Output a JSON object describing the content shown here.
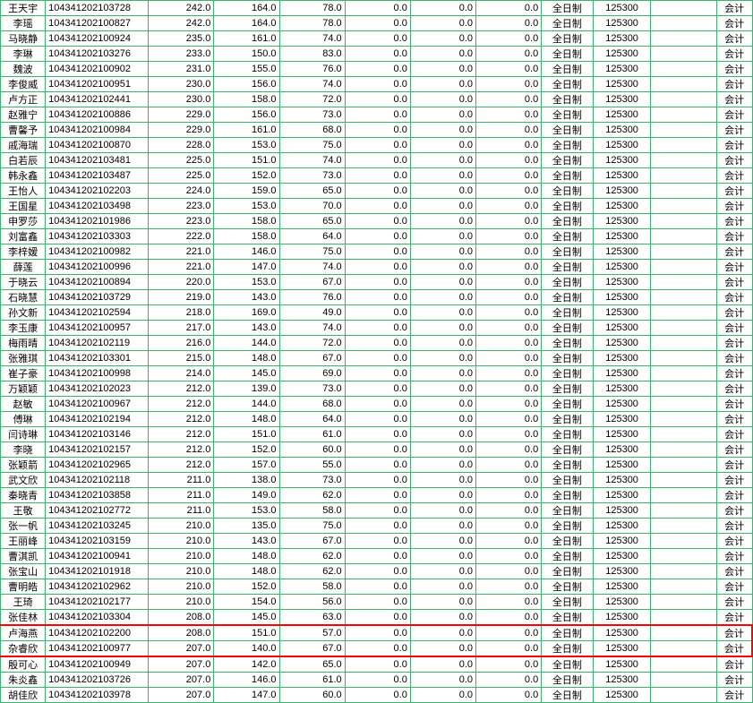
{
  "colors": {
    "grid": "#3cb371",
    "bg": "#ffffff",
    "text": "#000000",
    "highlight": "#ff0000"
  },
  "fontsize": 11,
  "columns": [
    {
      "key": "name",
      "class": "c-name",
      "align": "center"
    },
    {
      "key": "id",
      "class": "c-id",
      "align": "left"
    },
    {
      "key": "v1",
      "class": "c-num",
      "align": "right"
    },
    {
      "key": "v2",
      "class": "c-num",
      "align": "right"
    },
    {
      "key": "v3",
      "class": "c-num",
      "align": "right"
    },
    {
      "key": "v4",
      "class": "c-num",
      "align": "right"
    },
    {
      "key": "v5",
      "class": "c-num",
      "align": "right"
    },
    {
      "key": "v6",
      "class": "c-num",
      "align": "right"
    },
    {
      "key": "mode",
      "class": "c-txt",
      "align": "center"
    },
    {
      "key": "code",
      "class": "c-code",
      "align": "center"
    },
    {
      "key": "gap",
      "class": "c-num",
      "align": "right"
    },
    {
      "key": "major",
      "class": "c-maj",
      "align": "center"
    }
  ],
  "rows": [
    {
      "name": "王天宇",
      "id": "104341202103728",
      "v1": "242.0",
      "v2": "164.0",
      "v3": "78.0",
      "v4": "0.0",
      "v5": "0.0",
      "v6": "0.0",
      "mode": "全日制",
      "code": "125300",
      "gap": "",
      "major": "会计"
    },
    {
      "name": "李瑶",
      "id": "104341202100827",
      "v1": "242.0",
      "v2": "164.0",
      "v3": "78.0",
      "v4": "0.0",
      "v5": "0.0",
      "v6": "0.0",
      "mode": "全日制",
      "code": "125300",
      "gap": "",
      "major": "会计"
    },
    {
      "name": "马晓静",
      "id": "104341202100924",
      "v1": "235.0",
      "v2": "161.0",
      "v3": "74.0",
      "v4": "0.0",
      "v5": "0.0",
      "v6": "0.0",
      "mode": "全日制",
      "code": "125300",
      "gap": "",
      "major": "会计"
    },
    {
      "name": "李琳",
      "id": "104341202103276",
      "v1": "233.0",
      "v2": "150.0",
      "v3": "83.0",
      "v4": "0.0",
      "v5": "0.0",
      "v6": "0.0",
      "mode": "全日制",
      "code": "125300",
      "gap": "",
      "major": "会计"
    },
    {
      "name": "魏波",
      "id": "104341202100902",
      "v1": "231.0",
      "v2": "155.0",
      "v3": "76.0",
      "v4": "0.0",
      "v5": "0.0",
      "v6": "0.0",
      "mode": "全日制",
      "code": "125300",
      "gap": "",
      "major": "会计"
    },
    {
      "name": "李俊威",
      "id": "104341202100951",
      "v1": "230.0",
      "v2": "156.0",
      "v3": "74.0",
      "v4": "0.0",
      "v5": "0.0",
      "v6": "0.0",
      "mode": "全日制",
      "code": "125300",
      "gap": "",
      "major": "会计"
    },
    {
      "name": "卢方正",
      "id": "104341202102441",
      "v1": "230.0",
      "v2": "158.0",
      "v3": "72.0",
      "v4": "0.0",
      "v5": "0.0",
      "v6": "0.0",
      "mode": "全日制",
      "code": "125300",
      "gap": "",
      "major": "会计"
    },
    {
      "name": "赵雅宁",
      "id": "104341202100886",
      "v1": "229.0",
      "v2": "156.0",
      "v3": "73.0",
      "v4": "0.0",
      "v5": "0.0",
      "v6": "0.0",
      "mode": "全日制",
      "code": "125300",
      "gap": "",
      "major": "会计"
    },
    {
      "name": "曹馨予",
      "id": "104341202100984",
      "v1": "229.0",
      "v2": "161.0",
      "v3": "68.0",
      "v4": "0.0",
      "v5": "0.0",
      "v6": "0.0",
      "mode": "全日制",
      "code": "125300",
      "gap": "",
      "major": "会计"
    },
    {
      "name": "戚海瑞",
      "id": "104341202100870",
      "v1": "228.0",
      "v2": "153.0",
      "v3": "75.0",
      "v4": "0.0",
      "v5": "0.0",
      "v6": "0.0",
      "mode": "全日制",
      "code": "125300",
      "gap": "",
      "major": "会计"
    },
    {
      "name": "白若辰",
      "id": "104341202103481",
      "v1": "225.0",
      "v2": "151.0",
      "v3": "74.0",
      "v4": "0.0",
      "v5": "0.0",
      "v6": "0.0",
      "mode": "全日制",
      "code": "125300",
      "gap": "",
      "major": "会计"
    },
    {
      "name": "韩永鑫",
      "id": "104341202103487",
      "v1": "225.0",
      "v2": "152.0",
      "v3": "73.0",
      "v4": "0.0",
      "v5": "0.0",
      "v6": "0.0",
      "mode": "全日制",
      "code": "125300",
      "gap": "",
      "major": "会计"
    },
    {
      "name": "王怡人",
      "id": "104341202102203",
      "v1": "224.0",
      "v2": "159.0",
      "v3": "65.0",
      "v4": "0.0",
      "v5": "0.0",
      "v6": "0.0",
      "mode": "全日制",
      "code": "125300",
      "gap": "",
      "major": "会计"
    },
    {
      "name": "王国星",
      "id": "104341202103498",
      "v1": "223.0",
      "v2": "153.0",
      "v3": "70.0",
      "v4": "0.0",
      "v5": "0.0",
      "v6": "0.0",
      "mode": "全日制",
      "code": "125300",
      "gap": "",
      "major": "会计"
    },
    {
      "name": "申罗莎",
      "id": "104341202101986",
      "v1": "223.0",
      "v2": "158.0",
      "v3": "65.0",
      "v4": "0.0",
      "v5": "0.0",
      "v6": "0.0",
      "mode": "全日制",
      "code": "125300",
      "gap": "",
      "major": "会计"
    },
    {
      "name": "刘富鑫",
      "id": "104341202103303",
      "v1": "222.0",
      "v2": "158.0",
      "v3": "64.0",
      "v4": "0.0",
      "v5": "0.0",
      "v6": "0.0",
      "mode": "全日制",
      "code": "125300",
      "gap": "",
      "major": "会计"
    },
    {
      "name": "李梓嫒",
      "id": "104341202100982",
      "v1": "221.0",
      "v2": "146.0",
      "v3": "75.0",
      "v4": "0.0",
      "v5": "0.0",
      "v6": "0.0",
      "mode": "全日制",
      "code": "125300",
      "gap": "",
      "major": "会计"
    },
    {
      "name": "薛莲",
      "id": "104341202100996",
      "v1": "221.0",
      "v2": "147.0",
      "v3": "74.0",
      "v4": "0.0",
      "v5": "0.0",
      "v6": "0.0",
      "mode": "全日制",
      "code": "125300",
      "gap": "",
      "major": "会计"
    },
    {
      "name": "于晓云",
      "id": "104341202100894",
      "v1": "220.0",
      "v2": "153.0",
      "v3": "67.0",
      "v4": "0.0",
      "v5": "0.0",
      "v6": "0.0",
      "mode": "全日制",
      "code": "125300",
      "gap": "",
      "major": "会计"
    },
    {
      "name": "石晓慧",
      "id": "104341202103729",
      "v1": "219.0",
      "v2": "143.0",
      "v3": "76.0",
      "v4": "0.0",
      "v5": "0.0",
      "v6": "0.0",
      "mode": "全日制",
      "code": "125300",
      "gap": "",
      "major": "会计"
    },
    {
      "name": "孙文新",
      "id": "104341202102594",
      "v1": "218.0",
      "v2": "169.0",
      "v3": "49.0",
      "v4": "0.0",
      "v5": "0.0",
      "v6": "0.0",
      "mode": "全日制",
      "code": "125300",
      "gap": "",
      "major": "会计"
    },
    {
      "name": "李玉康",
      "id": "104341202100957",
      "v1": "217.0",
      "v2": "143.0",
      "v3": "74.0",
      "v4": "0.0",
      "v5": "0.0",
      "v6": "0.0",
      "mode": "全日制",
      "code": "125300",
      "gap": "",
      "major": "会计"
    },
    {
      "name": "梅雨晴",
      "id": "104341202102119",
      "v1": "216.0",
      "v2": "144.0",
      "v3": "72.0",
      "v4": "0.0",
      "v5": "0.0",
      "v6": "0.0",
      "mode": "全日制",
      "code": "125300",
      "gap": "",
      "major": "会计"
    },
    {
      "name": "张雅琪",
      "id": "104341202103301",
      "v1": "215.0",
      "v2": "148.0",
      "v3": "67.0",
      "v4": "0.0",
      "v5": "0.0",
      "v6": "0.0",
      "mode": "全日制",
      "code": "125300",
      "gap": "",
      "major": "会计"
    },
    {
      "name": "崔子豪",
      "id": "104341202100998",
      "v1": "214.0",
      "v2": "145.0",
      "v3": "69.0",
      "v4": "0.0",
      "v5": "0.0",
      "v6": "0.0",
      "mode": "全日制",
      "code": "125300",
      "gap": "",
      "major": "会计"
    },
    {
      "name": "万颖颖",
      "id": "104341202102023",
      "v1": "212.0",
      "v2": "139.0",
      "v3": "73.0",
      "v4": "0.0",
      "v5": "0.0",
      "v6": "0.0",
      "mode": "全日制",
      "code": "125300",
      "gap": "",
      "major": "会计"
    },
    {
      "name": "赵敏",
      "id": "104341202100967",
      "v1": "212.0",
      "v2": "144.0",
      "v3": "68.0",
      "v4": "0.0",
      "v5": "0.0",
      "v6": "0.0",
      "mode": "全日制",
      "code": "125300",
      "gap": "",
      "major": "会计"
    },
    {
      "name": "傅琳",
      "id": "104341202102194",
      "v1": "212.0",
      "v2": "148.0",
      "v3": "64.0",
      "v4": "0.0",
      "v5": "0.0",
      "v6": "0.0",
      "mode": "全日制",
      "code": "125300",
      "gap": "",
      "major": "会计"
    },
    {
      "name": "闫诗琳",
      "id": "104341202103146",
      "v1": "212.0",
      "v2": "151.0",
      "v3": "61.0",
      "v4": "0.0",
      "v5": "0.0",
      "v6": "0.0",
      "mode": "全日制",
      "code": "125300",
      "gap": "",
      "major": "会计"
    },
    {
      "name": "李晓",
      "id": "104341202102157",
      "v1": "212.0",
      "v2": "152.0",
      "v3": "60.0",
      "v4": "0.0",
      "v5": "0.0",
      "v6": "0.0",
      "mode": "全日制",
      "code": "125300",
      "gap": "",
      "major": "会计"
    },
    {
      "name": "张颖箭",
      "id": "104341202102965",
      "v1": "212.0",
      "v2": "157.0",
      "v3": "55.0",
      "v4": "0.0",
      "v5": "0.0",
      "v6": "0.0",
      "mode": "全日制",
      "code": "125300",
      "gap": "",
      "major": "会计"
    },
    {
      "name": "武文欣",
      "id": "104341202102118",
      "v1": "211.0",
      "v2": "138.0",
      "v3": "73.0",
      "v4": "0.0",
      "v5": "0.0",
      "v6": "0.0",
      "mode": "全日制",
      "code": "125300",
      "gap": "",
      "major": "会计"
    },
    {
      "name": "秦晓青",
      "id": "104341202103858",
      "v1": "211.0",
      "v2": "149.0",
      "v3": "62.0",
      "v4": "0.0",
      "v5": "0.0",
      "v6": "0.0",
      "mode": "全日制",
      "code": "125300",
      "gap": "",
      "major": "会计"
    },
    {
      "name": "王敬",
      "id": "104341202102772",
      "v1": "211.0",
      "v2": "153.0",
      "v3": "58.0",
      "v4": "0.0",
      "v5": "0.0",
      "v6": "0.0",
      "mode": "全日制",
      "code": "125300",
      "gap": "",
      "major": "会计"
    },
    {
      "name": "张一帆",
      "id": "104341202103245",
      "v1": "210.0",
      "v2": "135.0",
      "v3": "75.0",
      "v4": "0.0",
      "v5": "0.0",
      "v6": "0.0",
      "mode": "全日制",
      "code": "125300",
      "gap": "",
      "major": "会计"
    },
    {
      "name": "王丽峰",
      "id": "104341202103159",
      "v1": "210.0",
      "v2": "143.0",
      "v3": "67.0",
      "v4": "0.0",
      "v5": "0.0",
      "v6": "0.0",
      "mode": "全日制",
      "code": "125300",
      "gap": "",
      "major": "会计"
    },
    {
      "name": "曹淇凯",
      "id": "104341202100941",
      "v1": "210.0",
      "v2": "148.0",
      "v3": "62.0",
      "v4": "0.0",
      "v5": "0.0",
      "v6": "0.0",
      "mode": "全日制",
      "code": "125300",
      "gap": "",
      "major": "会计"
    },
    {
      "name": "张宝山",
      "id": "104341202101918",
      "v1": "210.0",
      "v2": "148.0",
      "v3": "62.0",
      "v4": "0.0",
      "v5": "0.0",
      "v6": "0.0",
      "mode": "全日制",
      "code": "125300",
      "gap": "",
      "major": "会计"
    },
    {
      "name": "曹明皓",
      "id": "104341202102962",
      "v1": "210.0",
      "v2": "152.0",
      "v3": "58.0",
      "v4": "0.0",
      "v5": "0.0",
      "v6": "0.0",
      "mode": "全日制",
      "code": "125300",
      "gap": "",
      "major": "会计"
    },
    {
      "name": "王琦",
      "id": "104341202102177",
      "v1": "210.0",
      "v2": "154.0",
      "v3": "56.0",
      "v4": "0.0",
      "v5": "0.0",
      "v6": "0.0",
      "mode": "全日制",
      "code": "125300",
      "gap": "",
      "major": "会计"
    },
    {
      "name": "张佳林",
      "id": "104341202103304",
      "v1": "208.0",
      "v2": "145.0",
      "v3": "63.0",
      "v4": "0.0",
      "v5": "0.0",
      "v6": "0.0",
      "mode": "全日制",
      "code": "125300",
      "gap": "",
      "major": "会计"
    },
    {
      "name": "卢海燕",
      "id": "104341202102200",
      "v1": "208.0",
      "v2": "151.0",
      "v3": "57.0",
      "v4": "0.0",
      "v5": "0.0",
      "v6": "0.0",
      "mode": "全日制",
      "code": "125300",
      "gap": "",
      "major": "会计",
      "hl": "top"
    },
    {
      "name": "杂睿欣",
      "id": "104341202100977",
      "v1": "207.0",
      "v2": "140.0",
      "v3": "67.0",
      "v4": "0.0",
      "v5": "0.0",
      "v6": "0.0",
      "mode": "全日制",
      "code": "125300",
      "gap": "",
      "major": "会计",
      "hl": "bot"
    },
    {
      "name": "殷可心",
      "id": "104341202100949",
      "v1": "207.0",
      "v2": "142.0",
      "v3": "65.0",
      "v4": "0.0",
      "v5": "0.0",
      "v6": "0.0",
      "mode": "全日制",
      "code": "125300",
      "gap": "",
      "major": "会计"
    },
    {
      "name": "朱炎鑫",
      "id": "104341202103726",
      "v1": "207.0",
      "v2": "146.0",
      "v3": "61.0",
      "v4": "0.0",
      "v5": "0.0",
      "v6": "0.0",
      "mode": "全日制",
      "code": "125300",
      "gap": "",
      "major": "会计"
    },
    {
      "name": "胡佳欣",
      "id": "104341202103978",
      "v1": "207.0",
      "v2": "147.0",
      "v3": "60.0",
      "v4": "0.0",
      "v5": "0.0",
      "v6": "0.0",
      "mode": "全日制",
      "code": "125300",
      "gap": "",
      "major": "会计"
    }
  ]
}
